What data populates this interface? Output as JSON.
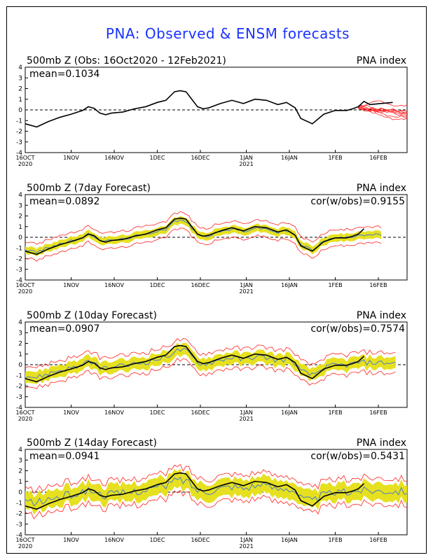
{
  "page": {
    "title": "PNA: Observed & ENSM forecasts",
    "colors": {
      "title": "#1a33ff",
      "observed": "#000000",
      "ensemble_member": "#ff2020",
      "spread_band": "#e6e020",
      "ensemble_mean": "#4a7dc8",
      "forecast_outline": "#e8a020"
    }
  },
  "chart_data": [
    {
      "type": "line",
      "title": "500mb  Z (Obs: 16Oct2020 - 12Feb2021)",
      "right_label": "PNA index",
      "stat_left": "mean=0.1034",
      "stat_right": "",
      "ylim": [
        -4,
        4
      ],
      "yticks": [
        "4",
        "3",
        "2",
        "1",
        "0",
        "-1",
        "-2",
        "-3",
        "-4"
      ],
      "xlim": [
        0,
        133
      ],
      "xtick_days": [
        0,
        16,
        31,
        46,
        61,
        77,
        92,
        108,
        123
      ],
      "xtick_labels": [
        "16OCT",
        "1NOV",
        "16NOV",
        "1DEC",
        "16DEC",
        "1JAN",
        "16JAN",
        "1FEB",
        "16FEB"
      ],
      "xtick_sublabels": [
        "2020",
        "",
        "",
        "",
        "",
        "2021",
        "",
        "",
        ""
      ],
      "obs": {
        "x": [
          0,
          4,
          8,
          12,
          16,
          20,
          22,
          24,
          26,
          28,
          30,
          34,
          38,
          42,
          46,
          49,
          52,
          54,
          56,
          58,
          60,
          62,
          64,
          66,
          68,
          72,
          76,
          80,
          84,
          88,
          91,
          94,
          96,
          100,
          104,
          108,
          110,
          112,
          114,
          116,
          118,
          120,
          124,
          128
        ],
        "y": [
          -1.3,
          -1.6,
          -1.1,
          -0.7,
          -0.4,
          -0.05,
          0.3,
          0.15,
          -0.3,
          -0.45,
          -0.3,
          -0.2,
          0.1,
          0.3,
          0.7,
          0.9,
          1.7,
          1.8,
          1.7,
          1.0,
          0.3,
          0.1,
          0.2,
          0.4,
          0.6,
          0.9,
          0.6,
          1.0,
          0.9,
          0.5,
          0.7,
          0.2,
          -0.8,
          -1.3,
          -0.4,
          -0.05,
          -0.05,
          -0.05,
          0.1,
          0.3,
          0.8,
          0.5,
          0.6,
          0.7
        ]
      },
      "members": {
        "x_start": 116,
        "x_end": 133,
        "count": 9
      }
    },
    {
      "type": "line",
      "title": "500mb  Z (7day Forecast)",
      "right_label": "PNA index",
      "stat_left": "mean=0.0892",
      "stat_right": "cor(w/obs)=0.9155",
      "ylim": [
        -4,
        4
      ],
      "yticks": [
        "4",
        "3",
        "2",
        "1",
        "0",
        "-1",
        "-2",
        "-3",
        "-4"
      ],
      "xlim": [
        0,
        133
      ],
      "xtick_days": [
        0,
        16,
        31,
        46,
        61,
        77,
        92,
        108,
        123
      ],
      "xtick_labels": [
        "16OCT",
        "1NOV",
        "16NOV",
        "1DEC",
        "16DEC",
        "1JAN",
        "16JAN",
        "1FEB",
        "16FEB"
      ],
      "xtick_sublabels": [
        "2020",
        "",
        "",
        "",
        "",
        "2021",
        "",
        "",
        ""
      ],
      "obs_until": 118,
      "fc_until": 124,
      "band_half_width": 0.35
    },
    {
      "type": "line",
      "title": "500mb  Z (10day Forecast)",
      "right_label": "PNA index",
      "stat_left": "mean=0.0907",
      "stat_right": "cor(w/obs)=0.7574",
      "ylim": [
        -4,
        4
      ],
      "yticks": [
        "4",
        "3",
        "2",
        "1",
        "0",
        "-1",
        "-2",
        "-3",
        "-4"
      ],
      "xlim": [
        0,
        133
      ],
      "xtick_days": [
        0,
        16,
        31,
        46,
        61,
        77,
        92,
        108,
        123
      ],
      "xtick_labels": [
        "16OCT",
        "1NOV",
        "16NOV",
        "1DEC",
        "16DEC",
        "1JAN",
        "16JAN",
        "1FEB",
        "16FEB"
      ],
      "xtick_sublabels": [
        "2020",
        "",
        "",
        "",
        "",
        "2021",
        "",
        "",
        ""
      ],
      "obs_until": 118,
      "fc_until": 129,
      "band_half_width": 0.55
    },
    {
      "type": "line",
      "title": "500mb  Z (14day Forecast)",
      "right_label": "PNA index",
      "stat_left": "mean=0.0941",
      "stat_right": "cor(w/obs)=0.5431",
      "ylim": [
        -4,
        4
      ],
      "yticks": [
        "4",
        "3",
        "2",
        "1",
        "0",
        "-1",
        "-2",
        "-3",
        "-4"
      ],
      "xlim": [
        0,
        133
      ],
      "xtick_days": [
        0,
        16,
        31,
        46,
        61,
        77,
        92,
        108,
        123
      ],
      "xtick_labels": [
        "16OCT",
        "1NOV",
        "16NOV",
        "1DEC",
        "16DEC",
        "1JAN",
        "16JAN",
        "1FEB",
        "16FEB"
      ],
      "xtick_sublabels": [
        "2020",
        "",
        "",
        "",
        "",
        "2021",
        "",
        "",
        ""
      ],
      "obs_until": 118,
      "fc_until": 133,
      "band_half_width": 0.8
    }
  ]
}
